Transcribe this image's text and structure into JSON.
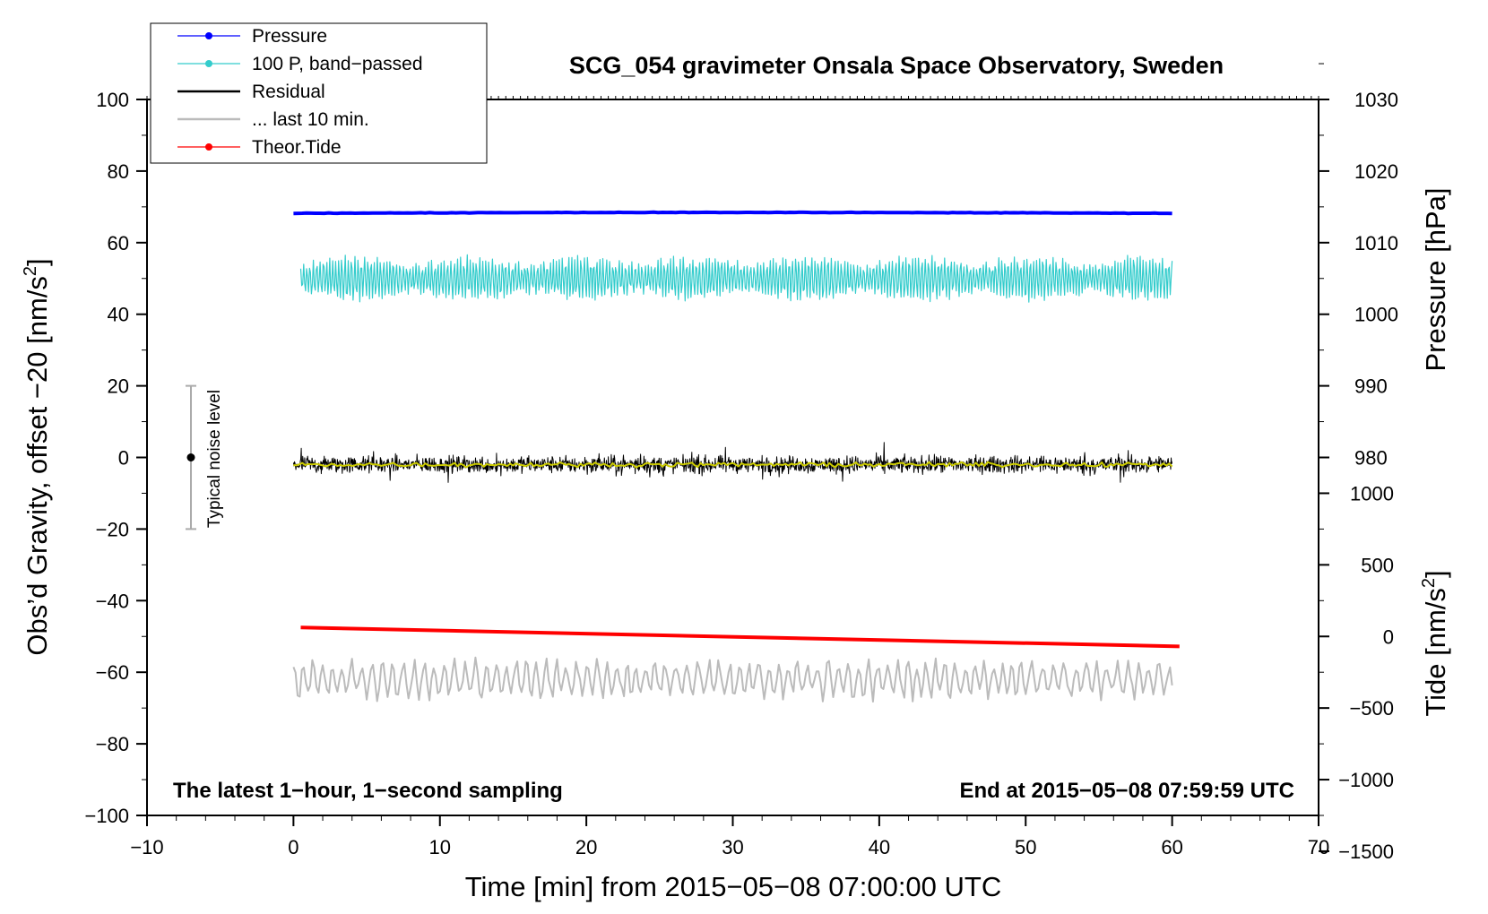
{
  "chart_data": {
    "type": "line",
    "title": "SCG_054 gravimeter Onsala Space Observatory, Sweden",
    "xlabel": "Time [min] from 2015−05−08 07:00:00 UTC",
    "ylabel_main": "Obs’d Gravity, offset −20 [nm/s",
    "ylabel_main_sup": "2",
    "ylabel_main_tail": "]",
    "ylabel_pressure": "Pressure [hPa]",
    "ylabel_tide": "Tide [nm/s",
    "ylabel_tide_sup": "2",
    "ylabel_tide_tail": "]",
    "xlim": [
      -10,
      70
    ],
    "ylim": [
      -100,
      100
    ],
    "x_ticks": [
      -10,
      0,
      10,
      20,
      30,
      40,
      50,
      60,
      70
    ],
    "x_tick_labels": [
      "−10",
      "0",
      "10",
      "20",
      "30",
      "40",
      "50",
      "60",
      "70"
    ],
    "y_ticks": [
      100,
      80,
      60,
      40,
      20,
      0,
      -20,
      -40,
      -60,
      -80,
      -100
    ],
    "y_tick_labels": [
      "100",
      "80",
      "60",
      "40",
      "20",
      "0",
      "−20",
      "−40",
      "−60",
      "−80",
      "−100"
    ],
    "pressure_axis": {
      "ticks": [
        1030,
        1020,
        1010,
        1000,
        990,
        980
      ],
      "tick_labels": [
        "1030",
        "1020",
        "1010",
        "1000",
        "990",
        "980"
      ],
      "gravity_at_1000": 40,
      "gravity_per_hpa": 2.0
    },
    "tide_axis": {
      "ticks": [
        1000,
        500,
        0,
        -500,
        -1000,
        -1500
      ],
      "tick_labels": [
        "1000",
        "500",
        "0",
        "−500",
        "−1000",
        "−1500"
      ],
      "gravity_at_0": -50,
      "gravity_per_unit": 0.04
    },
    "series": [
      {
        "name": "Pressure",
        "color": "#0000ff",
        "level": 68.2,
        "x_start": 0,
        "x_end": 60
      },
      {
        "name": "100 P, band−passed",
        "color": "#33cccc",
        "level": 50,
        "amplitude": 4.5,
        "x_start": 0.5,
        "x_end": 60
      },
      {
        "name": "Residual",
        "color": "#000000",
        "level": -2,
        "amplitude": 3.5,
        "x_start": 0,
        "x_end": 60
      },
      {
        "name": "... last 10 min.",
        "color": "#bbbbbb",
        "level": -62,
        "amplitude": 4.5,
        "x_start": 0,
        "x_end": 60
      },
      {
        "name": "Theor.Tide",
        "color": "#ff0000",
        "x": [
          0.5,
          60.5
        ],
        "y": [
          -47.5,
          -52.8
        ]
      }
    ],
    "smoothed_residual_color": "#cccc00",
    "noise_bar": {
      "label": "Typical noise level",
      "x": -7,
      "y": 0,
      "low": -20,
      "high": 20
    },
    "annotation_left": "The latest 1−hour, 1−second sampling",
    "annotation_right": "End at 2015−05−08 07:59:59 UTC"
  }
}
